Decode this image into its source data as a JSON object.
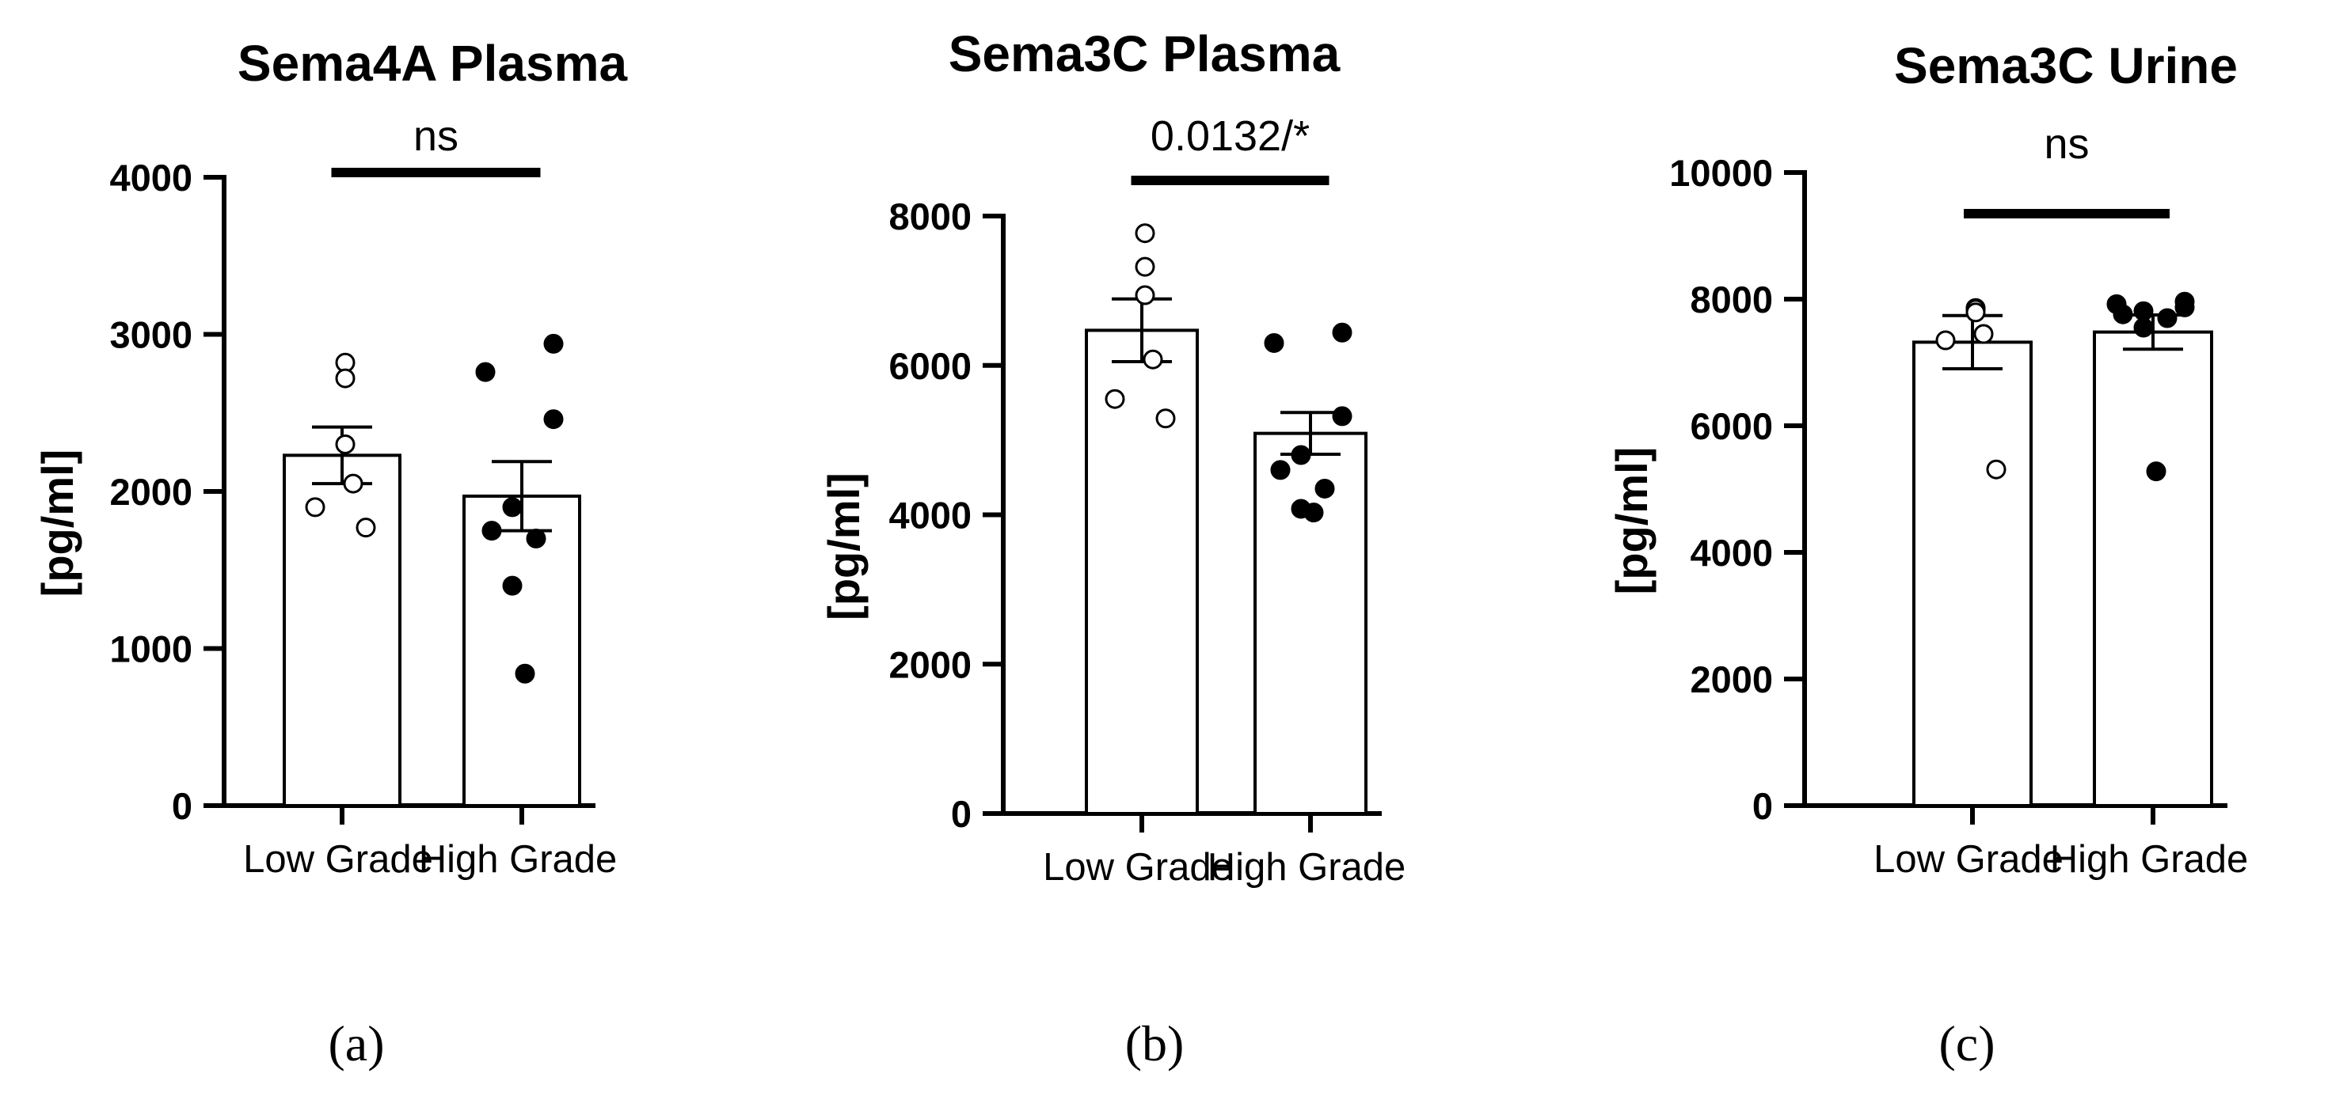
{
  "chart_data": [
    {
      "type": "bar",
      "panel": "(a)",
      "title": "Sema4A Plasma",
      "ylabel": "[pg/ml]",
      "xlabel": "",
      "ylim": [
        0,
        4000
      ],
      "yticks": [
        0,
        1000,
        2000,
        3000,
        4000
      ],
      "categories": [
        "Low Grade",
        "High Grade"
      ],
      "values": [
        2230,
        1970
      ],
      "sem": [
        180,
        220
      ],
      "points": [
        [
          2820,
          2720,
          2300,
          2050,
          1900,
          1770
        ],
        [
          2940,
          2760,
          2460,
          1900,
          1750,
          1700,
          1400,
          840
        ]
      ],
      "significance": "ns"
    },
    {
      "type": "bar",
      "panel": "(b)",
      "title": "Sema3C Plasma",
      "ylabel": "[pg/ml]",
      "xlabel": "",
      "ylim": [
        0,
        8000
      ],
      "yticks": [
        0,
        2000,
        4000,
        6000,
        8000
      ],
      "categories": [
        "Low Grade",
        "High Grade"
      ],
      "values": [
        6470,
        5090
      ],
      "sem": [
        420,
        280
      ],
      "points": [
        [
          7770,
          7320,
          6940,
          6080,
          5550,
          5290
        ],
        [
          6440,
          6300,
          5320,
          4800,
          4600,
          4350,
          4080,
          4030
        ]
      ],
      "significance": "0.0132/*"
    },
    {
      "type": "bar",
      "panel": "(c)",
      "title": "Sema3C Urine",
      "ylabel": "[pg/ml]",
      "xlabel": "",
      "ylim": [
        0,
        10000
      ],
      "yticks": [
        0,
        2000,
        4000,
        6000,
        8000,
        10000
      ],
      "categories": [
        "Low Grade",
        "High Grade"
      ],
      "values": [
        7320,
        7480
      ],
      "sem": [
        420,
        270
      ],
      "points": [
        [
          7860,
          7840,
          7790,
          7450,
          7350,
          5310
        ],
        [
          7960,
          7920,
          7870,
          7810,
          7760,
          7700,
          7550,
          5280
        ]
      ],
      "significance": "ns"
    }
  ]
}
